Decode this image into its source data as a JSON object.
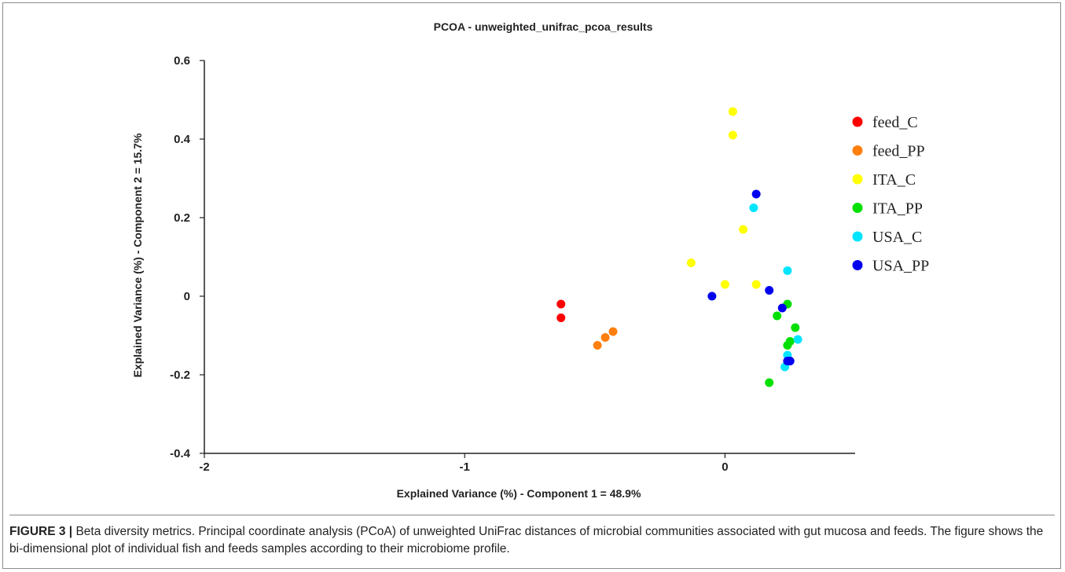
{
  "chart_data": {
    "type": "scatter",
    "title": "PCOA - unweighted_unifrac_pcoa_results",
    "xlabel": "Explained Variance (%) - Component 1 = 48.9%",
    "ylabel": "Explained Variance (%) - Component 2 = 15.7%",
    "xlim": [
      -2,
      0.5
    ],
    "ylim": [
      -0.4,
      0.6
    ],
    "x_ticks": [
      {
        "value": -2,
        "label": "-2"
      },
      {
        "value": -1,
        "label": "-1"
      },
      {
        "value": 0,
        "label": "0"
      }
    ],
    "y_ticks": [
      {
        "value": 0.6,
        "label": "0.6"
      },
      {
        "value": 0.4,
        "label": "0.4"
      },
      {
        "value": 0.2,
        "label": "0.2"
      },
      {
        "value": 0,
        "label": "0"
      },
      {
        "value": -0.2,
        "label": "-0.2"
      },
      {
        "value": -0.4,
        "label": "-0.4"
      }
    ],
    "grid": false,
    "legend_position": "right",
    "series": [
      {
        "name": "feed_C",
        "color": "#ff0000",
        "points": [
          [
            -0.63,
            -0.02
          ],
          [
            -0.63,
            -0.055
          ]
        ]
      },
      {
        "name": "feed_PP",
        "color": "#ff7f0e",
        "points": [
          [
            -0.43,
            -0.09
          ],
          [
            -0.46,
            -0.105
          ],
          [
            -0.49,
            -0.125
          ]
        ]
      },
      {
        "name": "ITA_C",
        "color": "#ffff00",
        "points": [
          [
            0.03,
            0.47
          ],
          [
            0.03,
            0.41
          ],
          [
            0.07,
            0.17
          ],
          [
            -0.13,
            0.085
          ],
          [
            0.0,
            0.03
          ],
          [
            0.12,
            0.03
          ]
        ]
      },
      {
        "name": "ITA_PP",
        "color": "#00e000",
        "points": [
          [
            0.24,
            -0.02
          ],
          [
            0.2,
            -0.05
          ],
          [
            0.27,
            -0.08
          ],
          [
            0.25,
            -0.115
          ],
          [
            0.24,
            -0.125
          ],
          [
            0.17,
            -0.22
          ]
        ]
      },
      {
        "name": "USA_C",
        "color": "#00e5ff",
        "points": [
          [
            0.11,
            0.225
          ],
          [
            0.24,
            0.065
          ],
          [
            0.28,
            -0.11
          ],
          [
            0.24,
            -0.15
          ],
          [
            0.23,
            -0.18
          ]
        ]
      },
      {
        "name": "USA_PP",
        "color": "#0000ee",
        "points": [
          [
            0.12,
            0.26
          ],
          [
            -0.05,
            0.0
          ],
          [
            0.17,
            0.015
          ],
          [
            0.22,
            -0.03
          ],
          [
            0.24,
            -0.165
          ],
          [
            0.25,
            -0.165
          ]
        ]
      }
    ]
  },
  "caption": {
    "label": "FIGURE 3 |",
    "text": " Beta diversity metrics. Principal coordinate analysis (PCoA) of unweighted UniFrac distances of microbial communities associated with gut mucosa and feeds. The figure shows the bi-dimensional plot of individual fish and feeds samples according to their microbiome profile."
  }
}
